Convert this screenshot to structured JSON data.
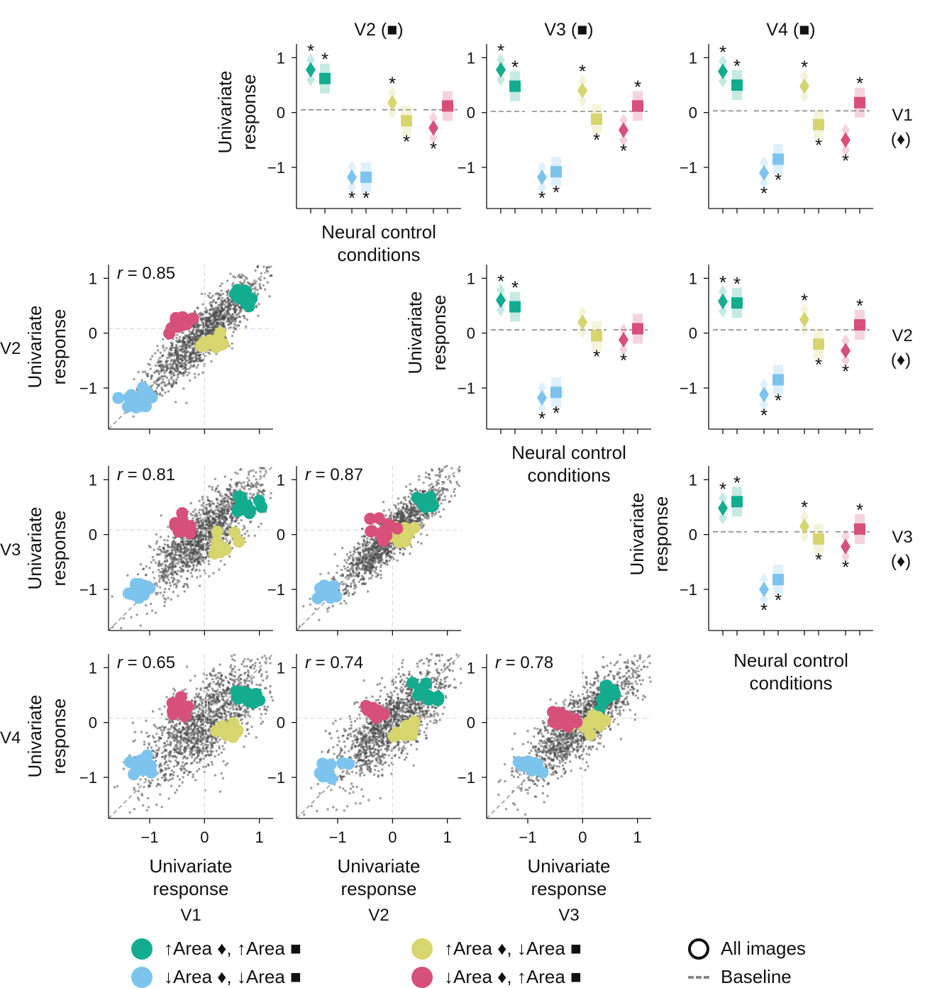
{
  "colors": {
    "teal": "#13ac8f",
    "blue": "#7cc4ee",
    "yellow": "#d6d56e",
    "pink": "#d6507a",
    "cloud": "#4a4a4a",
    "axis": "#111111",
    "baseline": "#888888"
  },
  "labels": {
    "r_prefix": "r",
    "xlabel_1": "Univariate",
    "xlabel_2": "response",
    "ylabel_1": "Univariate",
    "ylabel_2": "response",
    "nc_1": "Neural control",
    "nc_2": "conditions",
    "star": "*"
  },
  "col_titles": [
    "V2 (■)",
    "V3 (■)",
    "V4 (■)"
  ],
  "row_titles": [
    {
      "area": "V1",
      "marker": "(♦)"
    },
    {
      "area": "V2",
      "marker": "(♦)"
    },
    {
      "area": "V3",
      "marker": "(♦)"
    }
  ],
  "scatter_row_labels": [
    "V2",
    "V3",
    "V4"
  ],
  "scatter_col_labels": [
    "V1",
    "V2",
    "V3"
  ],
  "chart_data": [
    {
      "type": "scatter",
      "title": "Univariate response V2 vs V1",
      "x_area": "V1",
      "y_area": "V2",
      "r_text": " = 0.85",
      "xlim": [
        -1.75,
        1.25
      ],
      "ylim": [
        -1.75,
        1.25
      ],
      "xticks": [
        "−1",
        "0",
        "1"
      ],
      "yticks": [
        "1",
        "0",
        "−1"
      ],
      "spread": 0.18,
      "clusters": [
        {
          "name": "↑Area ♦, ↑Area ■",
          "color": "teal",
          "x": 0.75,
          "y": 0.7
        },
        {
          "name": "↓Area ♦, ↓Area ■",
          "color": "blue",
          "x": -1.2,
          "y": -1.2
        },
        {
          "name": "↑Area ♦, ↓Area ■",
          "color": "yellow",
          "x": 0.15,
          "y": -0.15
        },
        {
          "name": "↓Area ♦, ↑Area ■",
          "color": "pink",
          "x": -0.45,
          "y": 0.15
        }
      ]
    },
    {
      "type": "scatter",
      "title": "Univariate response V3 vs V1",
      "x_area": "V1",
      "y_area": "V3",
      "r_text": " = 0.81",
      "xlim": [
        -1.75,
        1.25
      ],
      "ylim": [
        -1.75,
        1.25
      ],
      "xticks": [
        "−1",
        "0",
        "1"
      ],
      "yticks": [
        "1",
        "0",
        "−1"
      ],
      "spread": 0.22,
      "clusters": [
        {
          "name": "↑Area ♦, ↑Area ■",
          "color": "teal",
          "x": 0.75,
          "y": 0.5
        },
        {
          "name": "↓Area ♦, ↓Area ■",
          "color": "blue",
          "x": -1.2,
          "y": -1.0
        },
        {
          "name": "↑Area ♦, ↓Area ■",
          "color": "yellow",
          "x": 0.35,
          "y": -0.15
        },
        {
          "name": "↓Area ♦, ↑Area ■",
          "color": "pink",
          "x": -0.4,
          "y": 0.15
        }
      ]
    },
    {
      "type": "scatter",
      "title": "Univariate response V3 vs V2",
      "x_area": "V2",
      "y_area": "V3",
      "r_text": " = 0.87",
      "xlim": [
        -1.75,
        1.25
      ],
      "ylim": [
        -1.75,
        1.25
      ],
      "xticks": [
        "−1",
        "0",
        "1"
      ],
      "yticks": [
        "1",
        "0",
        "−1"
      ],
      "spread": 0.16,
      "clusters": [
        {
          "name": "↑Area ♦, ↑Area ■",
          "color": "teal",
          "x": 0.6,
          "y": 0.55
        },
        {
          "name": "↓Area ♦, ↓Area ■",
          "color": "blue",
          "x": -1.2,
          "y": -1.05
        },
        {
          "name": "↑Area ♦, ↓Area ■",
          "color": "yellow",
          "x": 0.15,
          "y": 0.0
        },
        {
          "name": "↓Area ♦, ↑Area ■",
          "color": "pink",
          "x": -0.2,
          "y": 0.1
        }
      ]
    },
    {
      "type": "scatter",
      "title": "Univariate response V4 vs V1",
      "x_area": "V1",
      "y_area": "V4",
      "r_text": " = 0.65",
      "xlim": [
        -1.75,
        1.25
      ],
      "ylim": [
        -1.75,
        1.25
      ],
      "xticks": [
        "−1",
        "0",
        "1"
      ],
      "yticks": [
        "1",
        "0",
        "−1"
      ],
      "spread": 0.3,
      "clusters": [
        {
          "name": "↑Area ♦, ↑Area ■",
          "color": "teal",
          "x": 0.75,
          "y": 0.5
        },
        {
          "name": "↓Area ♦, ↓Area ■",
          "color": "blue",
          "x": -1.15,
          "y": -0.8
        },
        {
          "name": "↑Area ♦, ↓Area ■",
          "color": "yellow",
          "x": 0.45,
          "y": -0.2
        },
        {
          "name": "↓Area ♦, ↑Area ■",
          "color": "pink",
          "x": -0.45,
          "y": 0.25
        }
      ]
    },
    {
      "type": "scatter",
      "title": "Univariate response V4 vs V2",
      "x_area": "V2",
      "y_area": "V4",
      "r_text": " = 0.74",
      "xlim": [
        -1.75,
        1.25
      ],
      "ylim": [
        -1.75,
        1.25
      ],
      "xticks": [
        "−1",
        "0",
        "1"
      ],
      "yticks": [
        "1",
        "0",
        "−1"
      ],
      "spread": 0.26,
      "clusters": [
        {
          "name": "↑Area ♦, ↑Area ■",
          "color": "teal",
          "x": 0.65,
          "y": 0.5
        },
        {
          "name": "↓Area ♦, ↓Area ■",
          "color": "blue",
          "x": -1.15,
          "y": -0.85
        },
        {
          "name": "↑Area ♦, ↓Area ■",
          "color": "yellow",
          "x": 0.2,
          "y": -0.2
        },
        {
          "name": "↓Area ♦, ↑Area ■",
          "color": "pink",
          "x": -0.3,
          "y": 0.15
        }
      ]
    },
    {
      "type": "scatter",
      "title": "Univariate response V4 vs V3",
      "x_area": "V3",
      "y_area": "V4",
      "r_text": " = 0.78",
      "xlim": [
        -1.75,
        1.25
      ],
      "ylim": [
        -1.75,
        1.25
      ],
      "xticks": [
        "−1",
        "0",
        "1"
      ],
      "yticks": [
        "1",
        "0",
        "−1"
      ],
      "spread": 0.22,
      "clusters": [
        {
          "name": "↑Area ♦, ↑Area ■",
          "color": "teal",
          "x": 0.45,
          "y": 0.55
        },
        {
          "name": "↓Area ♦, ↓Area ■",
          "color": "blue",
          "x": -1.0,
          "y": -0.8
        },
        {
          "name": "↑Area ♦, ↓Area ■",
          "color": "yellow",
          "x": 0.15,
          "y": 0.0
        },
        {
          "name": "↓Area ♦, ↑Area ■",
          "color": "pink",
          "x": -0.35,
          "y": 0.05
        }
      ]
    },
    {
      "type": "dot",
      "title": "Neural control conditions: V1 (♦) vs V2 (■)",
      "ylim": [
        -1.75,
        1.25
      ],
      "yticks": [
        "1",
        "0",
        "−1"
      ],
      "baselines": [
        0.05,
        0.05,
        0.05,
        0.05
      ],
      "groups": [
        {
          "color": "teal",
          "diamond": 0.78,
          "square": 0.62,
          "diamond_star": "above",
          "square_star": "above"
        },
        {
          "color": "blue",
          "diamond": -1.18,
          "square": -1.18,
          "diamond_star": "below",
          "square_star": "below"
        },
        {
          "color": "yellow",
          "diamond": 0.18,
          "square": -0.15,
          "diamond_star": "above",
          "square_star": "below"
        },
        {
          "color": "pink",
          "diamond": -0.28,
          "square": 0.12,
          "diamond_star": "below",
          "square_star": ""
        }
      ]
    },
    {
      "type": "dot",
      "title": "Neural control conditions: V1 (♦) vs V3 (■)",
      "ylim": [
        -1.75,
        1.25
      ],
      "yticks": [
        "1",
        "0",
        "−1"
      ],
      "baselines": [
        0.02,
        0.02,
        0.02,
        0.02
      ],
      "groups": [
        {
          "color": "teal",
          "diamond": 0.78,
          "square": 0.48,
          "diamond_star": "above",
          "square_star": "above"
        },
        {
          "color": "blue",
          "diamond": -1.18,
          "square": -1.08,
          "diamond_star": "below",
          "square_star": "below"
        },
        {
          "color": "yellow",
          "diamond": 0.4,
          "square": -0.12,
          "diamond_star": "above",
          "square_star": "below"
        },
        {
          "color": "pink",
          "diamond": -0.32,
          "square": 0.12,
          "diamond_star": "below",
          "square_star": "above"
        }
      ]
    },
    {
      "type": "dot",
      "title": "Neural control conditions: V1 (♦) vs V4 (■)",
      "ylim": [
        -1.75,
        1.25
      ],
      "yticks": [
        "1",
        "0",
        "−1"
      ],
      "baselines": [
        0.03,
        0.03,
        0.03,
        0.03
      ],
      "groups": [
        {
          "color": "teal",
          "diamond": 0.75,
          "square": 0.5,
          "diamond_star": "above",
          "square_star": "above"
        },
        {
          "color": "blue",
          "diamond": -1.1,
          "square": -0.85,
          "diamond_star": "below",
          "square_star": "below"
        },
        {
          "color": "yellow",
          "diamond": 0.48,
          "square": -0.22,
          "diamond_star": "above",
          "square_star": "below"
        },
        {
          "color": "pink",
          "diamond": -0.5,
          "square": 0.18,
          "diamond_star": "below",
          "square_star": "above"
        }
      ]
    },
    {
      "type": "dot",
      "title": "Neural control conditions: V2 (♦) vs V3 (■)",
      "ylim": [
        -1.75,
        1.25
      ],
      "yticks": [
        "1",
        "0",
        "−1"
      ],
      "baselines": [
        0.06,
        0.06,
        0.06,
        0.06
      ],
      "groups": [
        {
          "color": "teal",
          "diamond": 0.6,
          "square": 0.48,
          "diamond_star": "above",
          "square_star": "above"
        },
        {
          "color": "blue",
          "diamond": -1.18,
          "square": -1.08,
          "diamond_star": "below",
          "square_star": "below"
        },
        {
          "color": "yellow",
          "diamond": 0.2,
          "square": -0.05,
          "diamond_star": "",
          "square_star": "below"
        },
        {
          "color": "pink",
          "diamond": -0.12,
          "square": 0.08,
          "diamond_star": "below",
          "square_star": ""
        }
      ]
    },
    {
      "type": "dot",
      "title": "Neural control conditions: V2 (♦) vs V4 (■)",
      "ylim": [
        -1.75,
        1.25
      ],
      "yticks": [
        "1",
        "0",
        "−1"
      ],
      "baselines": [
        0.06,
        0.06,
        0.06,
        0.06
      ],
      "groups": [
        {
          "color": "teal",
          "diamond": 0.58,
          "square": 0.55,
          "diamond_star": "above",
          "square_star": "above"
        },
        {
          "color": "blue",
          "diamond": -1.12,
          "square": -0.85,
          "diamond_star": "below",
          "square_star": "below"
        },
        {
          "color": "yellow",
          "diamond": 0.25,
          "square": -0.2,
          "diamond_star": "above",
          "square_star": "below"
        },
        {
          "color": "pink",
          "diamond": -0.32,
          "square": 0.15,
          "diamond_star": "below",
          "square_star": "above"
        }
      ]
    },
    {
      "type": "dot",
      "title": "Neural control conditions: V3 (♦) vs V4 (■)",
      "ylim": [
        -1.75,
        1.25
      ],
      "yticks": [
        "1",
        "0",
        "−1"
      ],
      "baselines": [
        0.05,
        0.05,
        0.05,
        0.05
      ],
      "groups": [
        {
          "color": "teal",
          "diamond": 0.48,
          "square": 0.6,
          "diamond_star": "above",
          "square_star": "above"
        },
        {
          "color": "blue",
          "diamond": -1.0,
          "square": -0.82,
          "diamond_star": "below",
          "square_star": "below"
        },
        {
          "color": "yellow",
          "diamond": 0.15,
          "square": -0.08,
          "diamond_star": "above",
          "square_star": "below"
        },
        {
          "color": "pink",
          "diamond": -0.22,
          "square": 0.1,
          "diamond_star": "below",
          "square_star": "above"
        }
      ]
    }
  ],
  "legend": {
    "teal": "↑Area ♦, ↑Area ■",
    "yellow": "↑Area ♦, ↓Area ■",
    "blue": "↓Area ♦, ↓Area ■",
    "pink": "↓Area ♦, ↑Area ■",
    "all_images": "All images",
    "baseline": "Baseline"
  }
}
